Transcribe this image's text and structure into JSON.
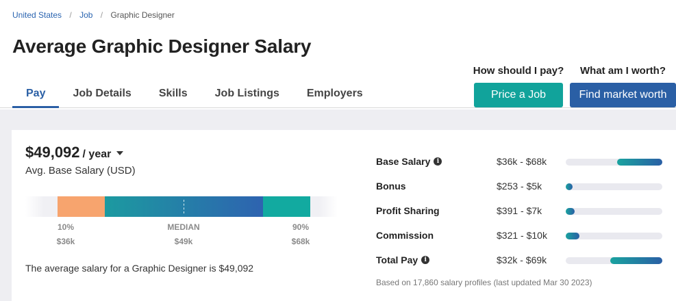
{
  "breadcrumb": {
    "items": [
      "United States",
      "Job"
    ],
    "current": "Graphic Designer"
  },
  "page_title": "Average Graphic Designer Salary",
  "tabs": [
    {
      "label": "Pay",
      "active": true
    },
    {
      "label": "Job Details"
    },
    {
      "label": "Skills"
    },
    {
      "label": "Job Listings"
    },
    {
      "label": "Employers"
    }
  ],
  "cta": {
    "pay_question": "How should I pay?",
    "pay_button": "Price a Job",
    "worth_question": "What am I worth?",
    "worth_button": "Find market worth"
  },
  "salary": {
    "amount": "$49,092",
    "period": "/ year",
    "subtitle": "Avg. Base Salary (USD)",
    "percentiles": [
      {
        "label": "10%",
        "value": "$36k"
      },
      {
        "label": "MEDIAN",
        "value": "$49k"
      },
      {
        "label": "90%",
        "value": "$68k"
      }
    ],
    "summary": "The average salary for a Graphic Designer is $49,092"
  },
  "compensation": [
    {
      "label": "Base Salary",
      "info": true,
      "range": "$36k - $68k",
      "fill_start": 0.53,
      "fill_end": 1.0
    },
    {
      "label": "Bonus",
      "info": false,
      "range": "$253 - $5k",
      "fill_start": 0.0,
      "fill_end": 0.07
    },
    {
      "label": "Profit Sharing",
      "info": false,
      "range": "$391 - $7k",
      "fill_start": 0.0,
      "fill_end": 0.09
    },
    {
      "label": "Commission",
      "info": false,
      "range": "$321 - $10k",
      "fill_start": 0.0,
      "fill_end": 0.14
    },
    {
      "label": "Total Pay",
      "info": true,
      "range": "$32k - $69k",
      "fill_start": 0.46,
      "fill_end": 1.0
    }
  ],
  "footnote": "Based on 17,860 salary profiles (last updated Mar 30 2023)",
  "colors": {
    "accent_blue": "#2a5fa5",
    "accent_teal": "#11a39b",
    "range_orange": "#f7a46e",
    "range_teal": "#1c9aa0",
    "range_blue": "#2e63b0",
    "range_teal_right": "#12aaa0"
  }
}
